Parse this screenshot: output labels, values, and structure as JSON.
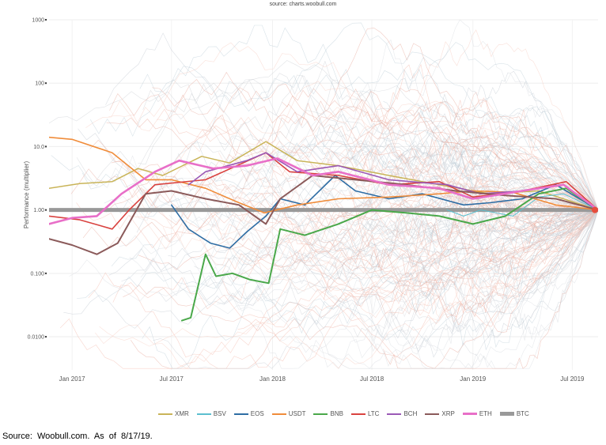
{
  "source_label": "source: charts.woobull.com",
  "footer_note": "Source: Woobull.com. As of 8/17/19.",
  "chart_data": {
    "type": "line",
    "title": "",
    "ylabel": "Performance (multiplier)",
    "yscale": "log",
    "ylim": [
      0.003,
      1000
    ],
    "xlim": [
      "2016-11-20",
      "2019-08-17"
    ],
    "y_ticks": [
      {
        "value": 1000,
        "label": "1000"
      },
      {
        "value": 100,
        "label": "100"
      },
      {
        "value": 10,
        "label": "10.0"
      },
      {
        "value": 1,
        "label": "1.00"
      },
      {
        "value": 0.1,
        "label": "0.100"
      },
      {
        "value": 0.01,
        "label": "0.0100"
      }
    ],
    "x_ticks": [
      {
        "date": "2017-01-01",
        "label": "Jan 2017"
      },
      {
        "date": "2017-07-01",
        "label": "Jul 2017"
      },
      {
        "date": "2018-01-01",
        "label": "Jan 2018"
      },
      {
        "date": "2018-07-01",
        "label": "Jul 2018"
      },
      {
        "date": "2019-01-01",
        "label": "Jan 2019"
      },
      {
        "date": "2019-07-01",
        "label": "Jul 2019"
      }
    ],
    "legend_position": "bottom",
    "series": [
      {
        "name": "XMR",
        "color": "#c9b458",
        "width": 1.5,
        "points": [
          [
            "2016-11-20",
            2.2
          ],
          [
            "2017-01-15",
            2.6
          ],
          [
            "2017-03-15",
            2.8
          ],
          [
            "2017-05-01",
            4.5
          ],
          [
            "2017-06-15",
            3.5
          ],
          [
            "2017-08-25",
            7.0
          ],
          [
            "2017-10-15",
            5.5
          ],
          [
            "2017-12-20",
            12.0
          ],
          [
            "2018-02-15",
            6.0
          ],
          [
            "2018-05-01",
            5.0
          ],
          [
            "2018-08-01",
            3.5
          ],
          [
            "2018-11-01",
            2.5
          ],
          [
            "2019-02-01",
            1.8
          ],
          [
            "2019-05-01",
            2.0
          ],
          [
            "2019-08-17",
            1.0
          ]
        ]
      },
      {
        "name": "BSV",
        "color": "#5bbfcf",
        "width": 1.0,
        "points": [
          [
            "2018-11-15",
            1.0
          ],
          [
            "2018-12-15",
            0.8
          ],
          [
            "2019-01-15",
            1.0
          ],
          [
            "2019-03-15",
            0.8
          ],
          [
            "2019-05-01",
            1.6
          ],
          [
            "2019-06-15",
            1.8
          ],
          [
            "2019-08-17",
            1.0
          ]
        ]
      },
      {
        "name": "EOS",
        "color": "#2e6da4",
        "width": 1.6,
        "points": [
          [
            "2017-07-01",
            1.2
          ],
          [
            "2017-08-01",
            0.5
          ],
          [
            "2017-09-10",
            0.3
          ],
          [
            "2017-10-15",
            0.25
          ],
          [
            "2017-11-15",
            0.45
          ],
          [
            "2017-12-20",
            0.8
          ],
          [
            "2018-01-15",
            1.5
          ],
          [
            "2018-03-01",
            1.2
          ],
          [
            "2018-04-25",
            3.5
          ],
          [
            "2018-06-01",
            2.0
          ],
          [
            "2018-08-01",
            1.5
          ],
          [
            "2018-10-01",
            1.8
          ],
          [
            "2018-12-15",
            1.2
          ],
          [
            "2019-02-01",
            1.3
          ],
          [
            "2019-04-01",
            1.5
          ],
          [
            "2019-06-01",
            2.5
          ],
          [
            "2019-08-17",
            1.0
          ]
        ]
      },
      {
        "name": "USDT",
        "color": "#f08c3a",
        "width": 1.6,
        "points": [
          [
            "2016-11-20",
            14.0
          ],
          [
            "2017-01-01",
            13.0
          ],
          [
            "2017-03-15",
            8.0
          ],
          [
            "2017-05-15",
            3.0
          ],
          [
            "2017-07-01",
            3.0
          ],
          [
            "2017-09-01",
            2.2
          ],
          [
            "2017-11-01",
            1.3
          ],
          [
            "2017-12-17",
            0.9
          ],
          [
            "2018-02-15",
            1.2
          ],
          [
            "2018-05-01",
            1.5
          ],
          [
            "2018-08-01",
            1.6
          ],
          [
            "2018-11-01",
            1.8
          ],
          [
            "2019-01-01",
            2.0
          ],
          [
            "2019-03-15",
            1.9
          ],
          [
            "2019-06-01",
            1.2
          ],
          [
            "2019-08-17",
            1.0
          ]
        ]
      },
      {
        "name": "BNB",
        "color": "#4aa84a",
        "width": 2.0,
        "points": [
          [
            "2017-07-20",
            0.018
          ],
          [
            "2017-08-05",
            0.02
          ],
          [
            "2017-09-01",
            0.2
          ],
          [
            "2017-09-20",
            0.09
          ],
          [
            "2017-10-20",
            0.1
          ],
          [
            "2017-11-20",
            0.08
          ],
          [
            "2017-12-25",
            0.07
          ],
          [
            "2018-01-15",
            0.5
          ],
          [
            "2018-03-01",
            0.4
          ],
          [
            "2018-05-01",
            0.6
          ],
          [
            "2018-07-01",
            1.0
          ],
          [
            "2018-09-01",
            0.9
          ],
          [
            "2018-11-01",
            0.8
          ],
          [
            "2019-01-01",
            0.6
          ],
          [
            "2019-03-01",
            0.8
          ],
          [
            "2019-05-01",
            1.8
          ],
          [
            "2019-06-20",
            2.2
          ],
          [
            "2019-08-17",
            1.0
          ]
        ]
      },
      {
        "name": "LTC",
        "color": "#d9423f",
        "width": 1.6,
        "points": [
          [
            "2016-11-20",
            0.8
          ],
          [
            "2017-01-15",
            0.7
          ],
          [
            "2017-03-15",
            0.5
          ],
          [
            "2017-04-15",
            1.0
          ],
          [
            "2017-06-01",
            2.5
          ],
          [
            "2017-09-01",
            3.0
          ],
          [
            "2017-12-20",
            8.0
          ],
          [
            "2018-02-01",
            4.0
          ],
          [
            "2018-05-01",
            3.5
          ],
          [
            "2018-08-01",
            2.5
          ],
          [
            "2018-11-01",
            2.8
          ],
          [
            "2019-01-01",
            1.6
          ],
          [
            "2019-04-01",
            2.0
          ],
          [
            "2019-06-20",
            2.8
          ],
          [
            "2019-08-17",
            1.0
          ]
        ]
      },
      {
        "name": "BCH",
        "color": "#9b59b6",
        "width": 1.6,
        "points": [
          [
            "2017-08-01",
            2.5
          ],
          [
            "2017-09-01",
            4.0
          ],
          [
            "2017-11-15",
            6.0
          ],
          [
            "2017-12-20",
            8.0
          ],
          [
            "2018-02-15",
            4.0
          ],
          [
            "2018-05-01",
            5.0
          ],
          [
            "2018-08-01",
            3.0
          ],
          [
            "2018-11-15",
            2.5
          ],
          [
            "2019-01-15",
            1.8
          ],
          [
            "2019-04-01",
            2.0
          ],
          [
            "2019-06-15",
            2.5
          ],
          [
            "2019-08-17",
            1.0
          ]
        ]
      },
      {
        "name": "XRP",
        "color": "#8b5a5a",
        "width": 2.0,
        "points": [
          [
            "2016-11-20",
            0.35
          ],
          [
            "2017-01-01",
            0.28
          ],
          [
            "2017-02-15",
            0.2
          ],
          [
            "2017-03-25",
            0.3
          ],
          [
            "2017-05-15",
            1.8
          ],
          [
            "2017-07-01",
            2.0
          ],
          [
            "2017-09-01",
            1.5
          ],
          [
            "2017-11-01",
            1.2
          ],
          [
            "2017-12-20",
            0.6
          ],
          [
            "2018-01-15",
            1.5
          ],
          [
            "2018-03-15",
            3.5
          ],
          [
            "2018-06-01",
            3.0
          ],
          [
            "2018-09-01",
            2.5
          ],
          [
            "2018-12-01",
            2.0
          ],
          [
            "2019-03-01",
            1.7
          ],
          [
            "2019-06-01",
            1.5
          ],
          [
            "2019-08-17",
            1.0
          ]
        ]
      },
      {
        "name": "ETH",
        "color": "#e86fc8",
        "width": 2.6,
        "points": [
          [
            "2016-11-20",
            0.6
          ],
          [
            "2017-01-01",
            0.75
          ],
          [
            "2017-02-15",
            0.8
          ],
          [
            "2017-04-01",
            1.8
          ],
          [
            "2017-06-01",
            4.0
          ],
          [
            "2017-07-15",
            6.0
          ],
          [
            "2017-09-15",
            4.5
          ],
          [
            "2017-11-15",
            5.0
          ],
          [
            "2018-01-10",
            6.5
          ],
          [
            "2018-03-15",
            3.5
          ],
          [
            "2018-05-01",
            4.0
          ],
          [
            "2018-08-01",
            2.5
          ],
          [
            "2018-11-01",
            2.2
          ],
          [
            "2019-01-01",
            1.5
          ],
          [
            "2019-04-01",
            2.0
          ],
          [
            "2019-06-15",
            2.5
          ],
          [
            "2019-08-17",
            1.0
          ]
        ]
      },
      {
        "name": "BTC",
        "color": "#999999",
        "width": 5.0,
        "points": [
          [
            "2016-11-20",
            1.0
          ],
          [
            "2019-08-17",
            1.0
          ]
        ]
      }
    ]
  }
}
